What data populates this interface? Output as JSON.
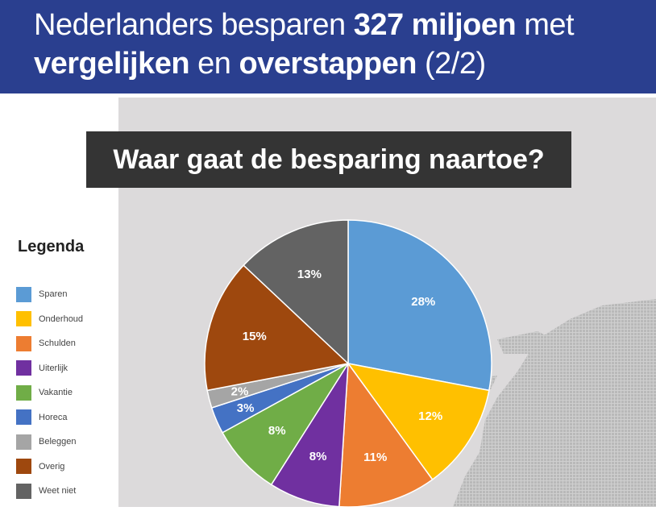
{
  "header": {
    "line1": [
      {
        "text": "Nederlanders besparen ",
        "bold": false
      },
      {
        "text": "327 miljoen",
        "bold": true
      },
      {
        "text": " met",
        "bold": false
      }
    ],
    "line2": [
      {
        "text": "vergelijken",
        "bold": true
      },
      {
        "text": " en ",
        "bold": false
      },
      {
        "text": "overstappen",
        "bold": true
      },
      {
        "text": " (2/2)",
        "bold": false
      }
    ]
  },
  "subtitle": "Waar gaat de besparing naartoe?",
  "legend": {
    "title": "Legenda"
  },
  "chart_data": {
    "type": "pie",
    "title": "Waar gaat de besparing naartoe?",
    "unit": "%",
    "slices": [
      {
        "label": "Sparen",
        "value": 28,
        "color": "#5b9bd5"
      },
      {
        "label": "Onderhoud",
        "value": 12,
        "color": "#ffc000"
      },
      {
        "label": "Schulden",
        "value": 11,
        "color": "#ed7d31"
      },
      {
        "label": "Uiterlijk",
        "value": 8,
        "color": "#7030a0"
      },
      {
        "label": "Vakantie",
        "value": 8,
        "color": "#70ad47"
      },
      {
        "label": "Horeca",
        "value": 3,
        "color": "#4472c4"
      },
      {
        "label": "Beleggen",
        "value": 2,
        "color": "#a5a5a5"
      },
      {
        "label": "Overig",
        "value": 15,
        "color": "#9e480e"
      },
      {
        "label": "Weet niet",
        "value": 13,
        "color": "#636363"
      }
    ],
    "data_labels": [
      "28%",
      "12%",
      "11%",
      "8%",
      "8%",
      "3%",
      "2%",
      "15%",
      "13%"
    ],
    "legend_position": "left"
  }
}
